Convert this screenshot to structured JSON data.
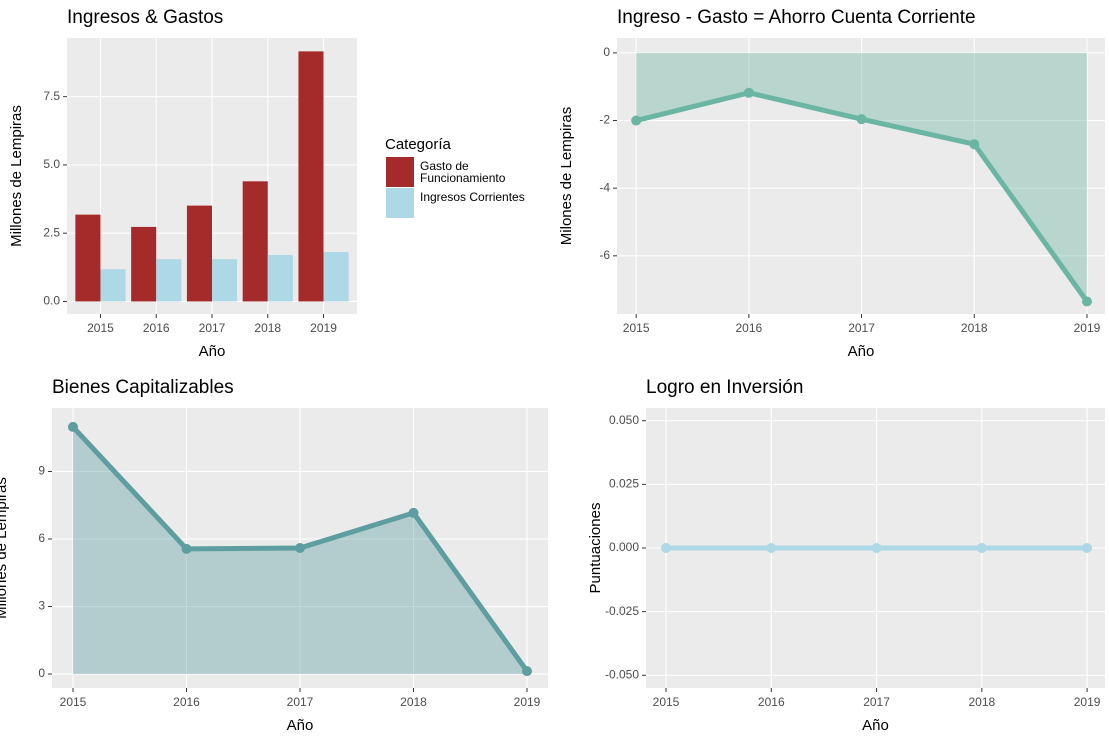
{
  "chart_data": [
    {
      "type": "bar",
      "title": "Ingresos & Gastos",
      "x_label": "Año",
      "y_label": "Millones de Lempiras",
      "categories": [
        "2015",
        "2016",
        "2017",
        "2018",
        "2019"
      ],
      "series": [
        {
          "name": "Gasto de Funcionamiento",
          "color": "#a52a2a",
          "values": [
            3.18,
            2.73,
            3.51,
            4.4,
            9.16
          ]
        },
        {
          "name": "Ingresos Corrientes",
          "color": "#add8e6",
          "values": [
            1.18,
            1.55,
            1.55,
            1.7,
            1.81
          ]
        }
      ],
      "legend_title": "Categoría",
      "legend": "right",
      "ylim": [
        -0.46,
        9.65
      ],
      "yticks": [
        {
          "value": 0,
          "label": "0.0"
        },
        2.5,
        {
          "value": 5,
          "label": "5.0"
        },
        7.5
      ],
      "grid": true
    },
    {
      "type": "area",
      "title": "Ingreso - Gasto = Ahorro Cuenta Corriente",
      "x_label": "Año",
      "y_label": "Milones de Lempiras",
      "x": [
        2015,
        2016,
        2017,
        2018,
        2019
      ],
      "values": [
        -2.0,
        -1.18,
        -1.96,
        -2.7,
        -7.35
      ],
      "color": "#6bb5a3",
      "xlim": [
        2014.83,
        2019.16
      ],
      "xticks": [
        2015,
        2016,
        2017,
        2018,
        2019
      ],
      "ylim": [
        -7.72,
        0.44
      ],
      "yticks": [
        -6,
        -4,
        -2,
        0
      ],
      "grid": true
    },
    {
      "type": "area",
      "title": "Bienes Capitalizables",
      "x_label": "Año",
      "y_label": "Millones de Lempiras",
      "x": [
        2015,
        2016,
        2017,
        2018,
        2019
      ],
      "values": [
        10.98,
        5.56,
        5.6,
        7.16,
        0.13
      ],
      "color": "#5f9ea0",
      "xlim": [
        2014.815,
        2019.185
      ],
      "xticks": [
        2015,
        2016,
        2017,
        2018,
        2019
      ],
      "ylim": [
        -0.62,
        11.82
      ],
      "yticks": [
        0,
        3,
        6,
        9
      ],
      "grid": true
    },
    {
      "type": "line",
      "title": "Logro en Inversión",
      "x_label": "Año",
      "y_label": "Puntuaciones",
      "x": [
        2015,
        2016,
        2017,
        2018,
        2019
      ],
      "values": [
        0,
        0,
        0,
        0,
        0
      ],
      "color": "#add8e6",
      "xlim": [
        2014.81,
        2019.17
      ],
      "xticks": [
        2015,
        2016,
        2017,
        2018,
        2019
      ],
      "ylim": [
        -0.055,
        0.055
      ],
      "yticks": [
        {
          "value": -0.05,
          "label": "-0.050"
        },
        -0.025,
        {
          "value": 0,
          "label": "0.000"
        },
        0.025,
        {
          "value": 0.05,
          "label": "0.050"
        }
      ],
      "grid": true
    }
  ]
}
